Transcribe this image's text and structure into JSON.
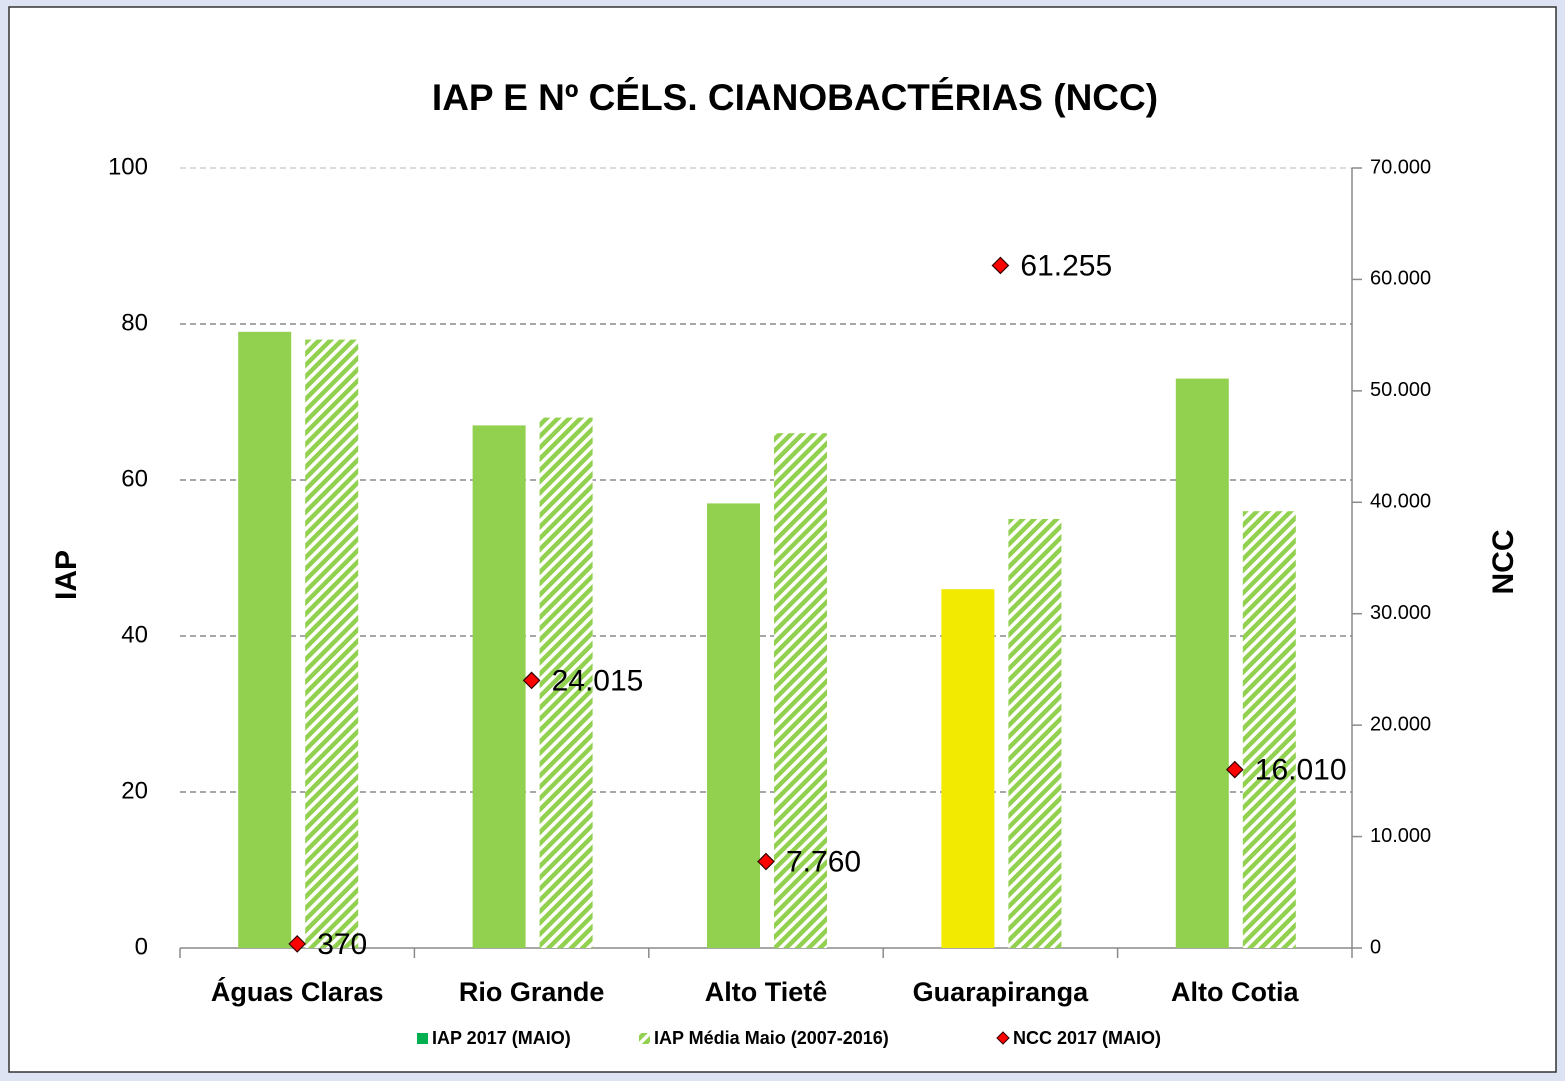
{
  "chart_data": {
    "type": "bar",
    "title": "IAP E Nº CÉLS. CIANOBACTÉRIAS (NCC)",
    "ylabel": "IAP",
    "y2label": "NCC",
    "categories": [
      "Águas Claras",
      "Rio Grande",
      "Alto Tietê",
      "Guarapiranga",
      "Alto Cotia"
    ],
    "series": [
      {
        "name": "IAP 2017 (MAIO)",
        "color": "#00b050",
        "colors": [
          "#92d050",
          "#92d050",
          "#92d050",
          "#f2ea00",
          "#92d050"
        ],
        "values": [
          79,
          67,
          57,
          46,
          73
        ]
      },
      {
        "name": "IAP Média Maio (2007-2016)",
        "color": "#92d050",
        "pattern": "hatch",
        "values": [
          78,
          68,
          66,
          55,
          56
        ]
      },
      {
        "name": "NCC 2017 (MAIO)",
        "color": "#ff0000",
        "type": "scatter",
        "marker": "diamond",
        "axis": "y2",
        "values": [
          370,
          24015,
          7760,
          61255,
          16010
        ],
        "value_labels": [
          "370",
          "24.015",
          "7.760",
          "61.255",
          "16.010"
        ]
      }
    ],
    "ylim": [
      0,
      100
    ],
    "yticks": [
      0,
      20,
      40,
      60,
      80,
      100
    ],
    "y2lim": [
      0,
      70000
    ],
    "y2ticks": [
      0,
      {
        "value": 10000,
        "label": "10.000"
      },
      {
        "value": 20000,
        "label": "20.000"
      },
      {
        "value": 30000,
        "label": "30.000"
      },
      {
        "value": 40000,
        "label": "40.000"
      },
      {
        "value": 50000,
        "label": "50.000"
      },
      {
        "value": 60000,
        "label": "60.000"
      },
      {
        "value": 70000,
        "label": "70.000"
      }
    ],
    "grid": true,
    "legend": "bottom"
  }
}
